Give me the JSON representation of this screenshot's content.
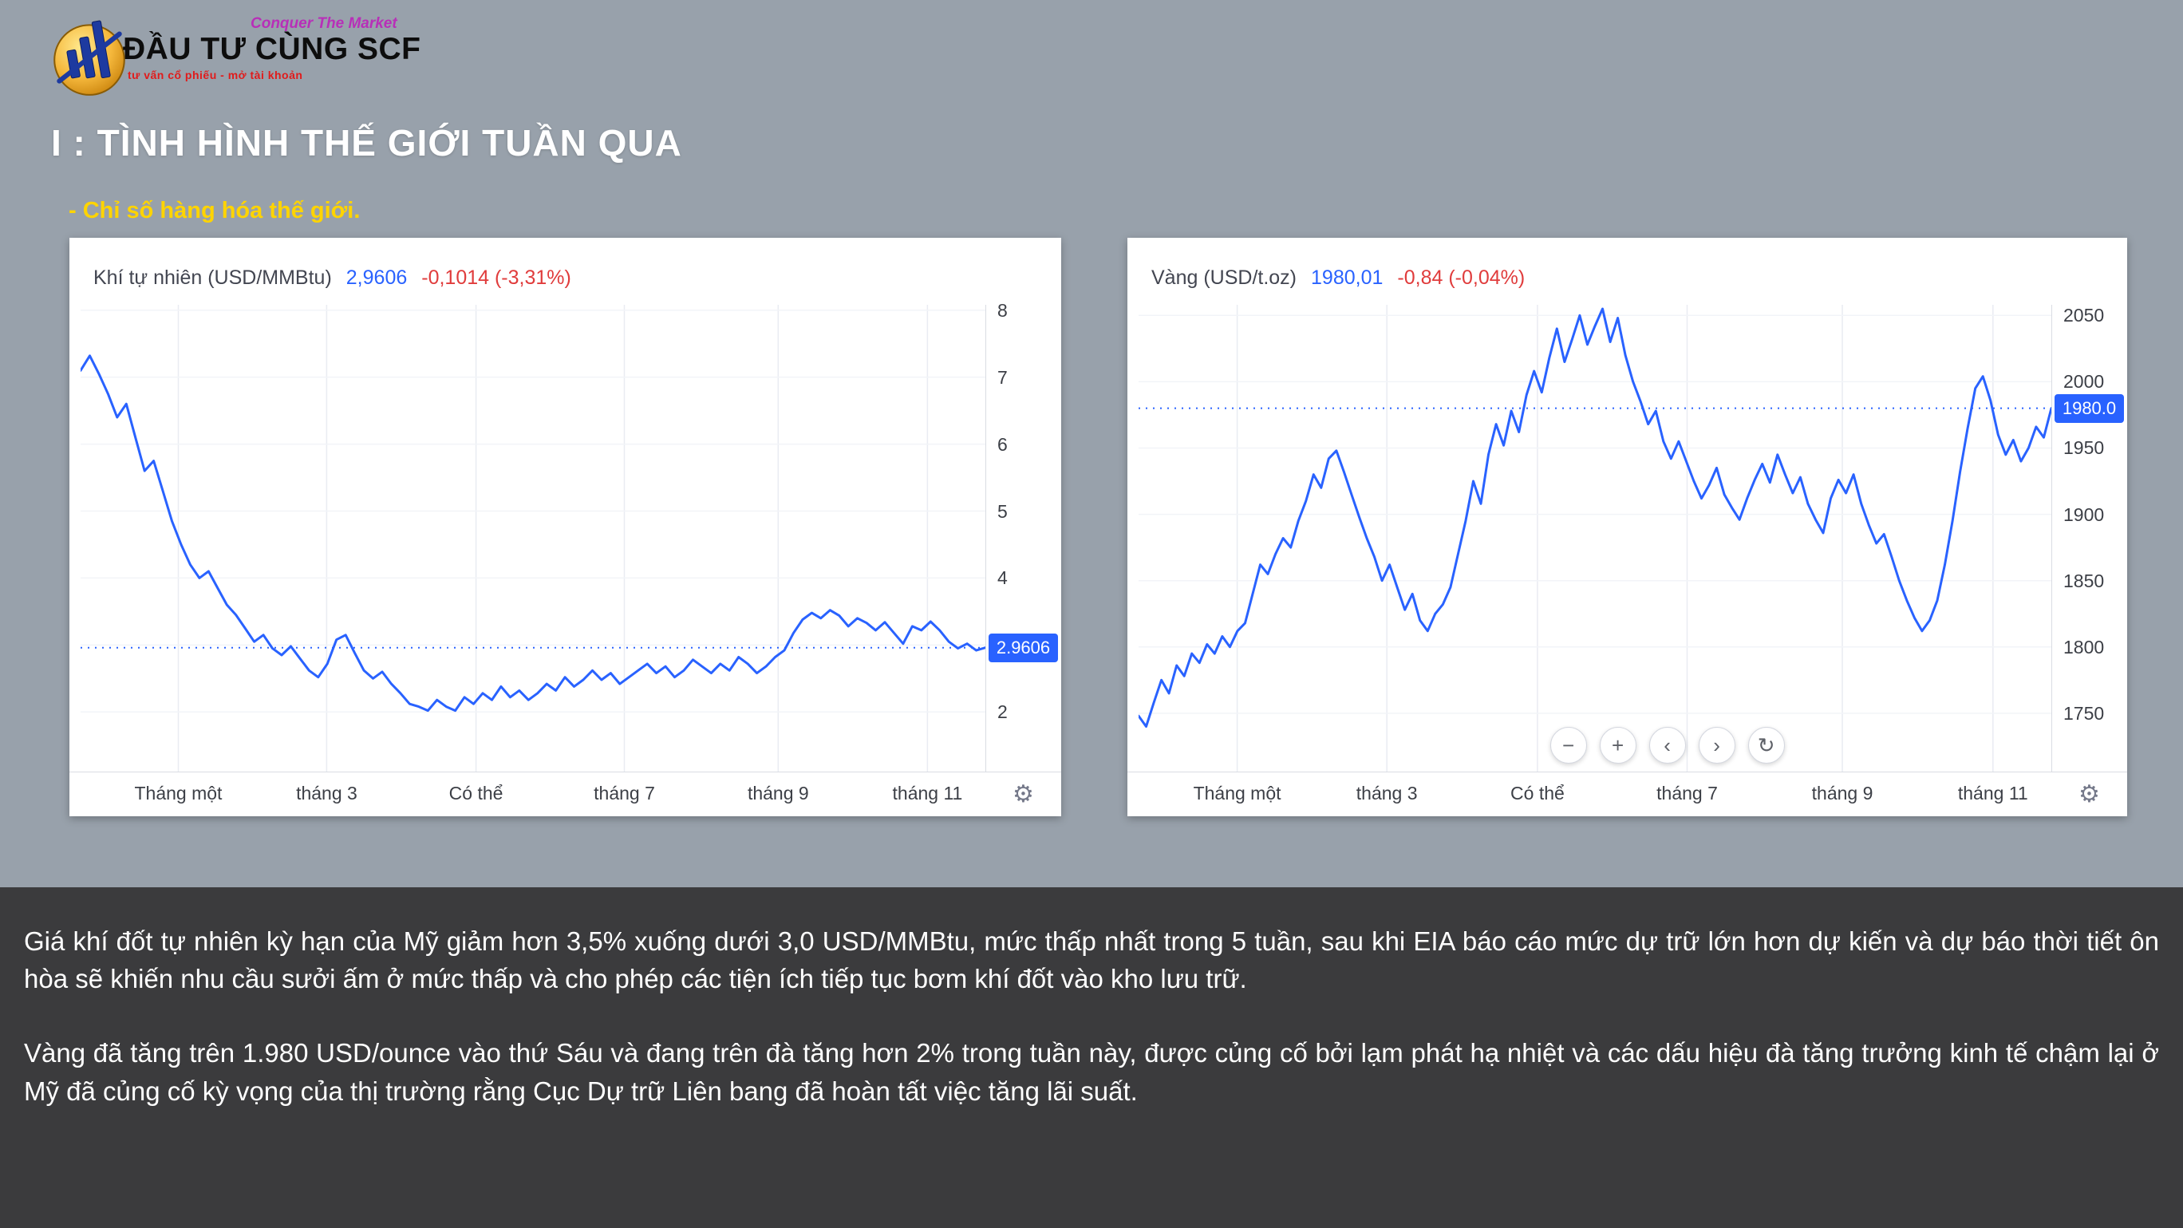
{
  "colors": {
    "page_bg": "#98a1ab",
    "accent_blue": "#2962ff",
    "line_blue": "#2962ff",
    "change_red": "#e03c3c",
    "highlight_yellow": "#ffd400",
    "footer_bg": "#3b3b3d"
  },
  "logo": {
    "brand": "ĐẦU TƯ CÙNG SCF",
    "tagline": "Conquer The Market",
    "subtext": "tư vấn cổ phiếu - mở tài khoản"
  },
  "header": {
    "title": "I : TÌNH HÌNH THẾ GIỚI TUẦN QUA",
    "subtitle": "- Chỉ số hàng hóa thế giới."
  },
  "icons": {
    "gear": "⚙",
    "zoom_out": "−",
    "zoom_in": "+",
    "prev": "‹",
    "next": "›",
    "refresh": "↻"
  },
  "chart_data": [
    {
      "type": "line",
      "title": "Khí tự nhiên (USD/MMBtu)",
      "price_display": "2,9606",
      "change_display": "-0,1014 (-3,31%)",
      "price_tag": "2.9606",
      "last_value": 2.9606,
      "ylim": [
        1.11,
        8.08
      ],
      "yticks": [
        8,
        7,
        6,
        5,
        4,
        3,
        2
      ],
      "x_labels": [
        "Tháng một",
        "tháng 3",
        "Có thể",
        "tháng 7",
        "tháng 9",
        "tháng 11"
      ],
      "grid_x": [
        0.108,
        0.272,
        0.437,
        0.601,
        0.771,
        0.936
      ],
      "legend": "none",
      "values": [
        7.1,
        7.32,
        7.05,
        6.75,
        6.4,
        6.6,
        6.1,
        5.6,
        5.75,
        5.3,
        4.85,
        4.5,
        4.2,
        4.0,
        4.1,
        3.85,
        3.6,
        3.45,
        3.25,
        3.05,
        3.15,
        2.95,
        2.85,
        2.98,
        2.8,
        2.62,
        2.52,
        2.72,
        3.08,
        3.15,
        2.88,
        2.62,
        2.5,
        2.6,
        2.42,
        2.28,
        2.12,
        2.08,
        2.02,
        2.18,
        2.08,
        2.02,
        2.22,
        2.12,
        2.28,
        2.18,
        2.38,
        2.22,
        2.32,
        2.18,
        2.28,
        2.42,
        2.32,
        2.52,
        2.38,
        2.48,
        2.62,
        2.48,
        2.58,
        2.42,
        2.52,
        2.62,
        2.72,
        2.58,
        2.68,
        2.52,
        2.62,
        2.78,
        2.68,
        2.58,
        2.72,
        2.62,
        2.82,
        2.72,
        2.58,
        2.68,
        2.82,
        2.92,
        3.18,
        3.38,
        3.48,
        3.4,
        3.52,
        3.44,
        3.28,
        3.4,
        3.33,
        3.22,
        3.34,
        3.18,
        3.02,
        3.28,
        3.22,
        3.35,
        3.22,
        3.05,
        2.95,
        3.02,
        2.92,
        2.9606
      ]
    },
    {
      "type": "line",
      "title": "Vàng (USD/t.oz)",
      "price_display": "1980,01",
      "change_display": "-0,84 (-0,04%)",
      "price_tag": "1980.0",
      "last_value": 1980.01,
      "ylim": [
        1706,
        2058
      ],
      "yticks": [
        2050,
        2000,
        1950,
        1900,
        1850,
        1800,
        1750
      ],
      "x_labels": [
        "Tháng một",
        "tháng 3",
        "Có thể",
        "tháng 7",
        "tháng 9",
        "tháng 11"
      ],
      "grid_x": [
        0.108,
        0.272,
        0.437,
        0.601,
        0.771,
        0.936
      ],
      "legend": "none",
      "values": [
        1748,
        1740,
        1758,
        1775,
        1765,
        1786,
        1778,
        1795,
        1788,
        1802,
        1795,
        1808,
        1800,
        1812,
        1818,
        1840,
        1862,
        1855,
        1870,
        1882,
        1875,
        1895,
        1910,
        1930,
        1920,
        1942,
        1948,
        1932,
        1915,
        1898,
        1882,
        1868,
        1850,
        1862,
        1845,
        1828,
        1840,
        1820,
        1812,
        1825,
        1832,
        1845,
        1870,
        1895,
        1925,
        1908,
        1945,
        1968,
        1952,
        1978,
        1962,
        1990,
        2008,
        1992,
        2018,
        2040,
        2015,
        2032,
        2050,
        2028,
        2042,
        2055,
        2030,
        2048,
        2020,
        2000,
        1985,
        1968,
        1978,
        1955,
        1942,
        1955,
        1940,
        1925,
        1912,
        1922,
        1935,
        1915,
        1905,
        1896,
        1912,
        1926,
        1938,
        1924,
        1945,
        1930,
        1916,
        1928,
        1908,
        1896,
        1886,
        1912,
        1926,
        1916,
        1930,
        1908,
        1892,
        1878,
        1885,
        1868,
        1850,
        1835,
        1822,
        1812,
        1820,
        1835,
        1862,
        1895,
        1932,
        1965,
        1995,
        2004,
        1986,
        1960,
        1945,
        1956,
        1940,
        1950,
        1966,
        1958,
        1980.01
      ]
    }
  ],
  "footer": {
    "paragraph1": "Giá khí đốt tự nhiên kỳ hạn của Mỹ giảm hơn 3,5% xuống dưới 3,0 USD/MMBtu, mức thấp nhất trong 5 tuần, sau khi EIA báo cáo mức dự trữ lớn hơn dự kiến và dự báo thời tiết ôn hòa sẽ khiến nhu cầu sưởi ấm ở mức thấp và cho phép các tiện ích tiếp tục bơm khí đốt vào kho lưu trữ.",
    "paragraph2": "Vàng đã tăng trên 1.980 USD/ounce vào thứ Sáu và đang trên đà tăng hơn 2% trong tuần này, được củng cố bởi lạm phát hạ nhiệt và các dấu hiệu đà tăng trưởng kinh tế chậm lại ở Mỹ đã củng cố kỳ vọng của thị trường rằng Cục Dự trữ Liên bang đã hoàn tất việc tăng lãi suất."
  }
}
